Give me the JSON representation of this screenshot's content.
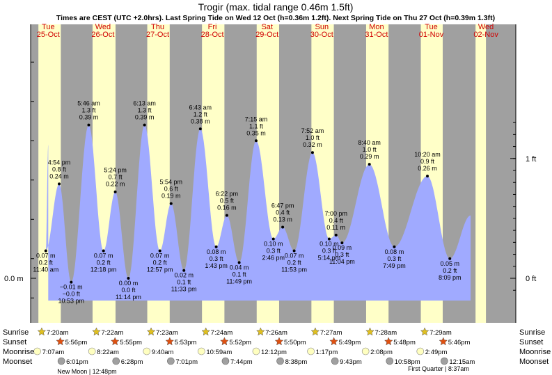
{
  "chart_data": {
    "type": "area",
    "title": "Trogir (max. tidal range 0.46m 1.5ft)",
    "subtitle": "Times are CEST (UTC +2.0hrs). Last Spring Tide on Wed 12 Oct (h=0.36m 1.2ft). Next Spring Tide on Thu 27 Oct (h=0.39m 1.3ft)",
    "days": [
      {
        "dow": "Tue",
        "date": "25-Oct"
      },
      {
        "dow": "Wed",
        "date": "26-Oct"
      },
      {
        "dow": "Thu",
        "date": "27-Oct"
      },
      {
        "dow": "Fri",
        "date": "28-Oct"
      },
      {
        "dow": "Sat",
        "date": "29-Oct"
      },
      {
        "dow": "Sun",
        "date": "30-Oct"
      },
      {
        "dow": "Mon",
        "date": "31-Oct"
      },
      {
        "dow": "Tue",
        "date": "01-Nov"
      },
      {
        "dow": "Wed",
        "date": "02-Nov"
      }
    ],
    "y_axis_left": {
      "label": "0.0 m",
      "value": 0
    },
    "y_axis_right": [
      {
        "label": "0 ft",
        "value_ft": 0
      },
      {
        "label": "1 ft",
        "value_ft": 1
      }
    ],
    "tides": [
      {
        "x": 0.455,
        "h": 0.07,
        "time": "11:40 am",
        "m": "0.07 m",
        "ft": "0.2 ft",
        "kind": "low"
      },
      {
        "x": 0.7,
        "h": 0.24,
        "time": "4:54 pm",
        "m": "0.24 m",
        "ft": "0.8 ft",
        "kind": "high"
      },
      {
        "x": 0.92,
        "h": -0.01,
        "time": "10:53 pm",
        "m": "−0.01 m",
        "ft": "−0.0 ft",
        "kind": "low"
      },
      {
        "x": 1.24,
        "h": 0.39,
        "time": "5:46 am",
        "m": "0.39 m",
        "ft": "1.3 ft",
        "kind": "high"
      },
      {
        "x": 1.51,
        "h": 0.07,
        "time": "12:18 pm",
        "m": "0.07 m",
        "ft": "0.2 ft",
        "kind": "low"
      },
      {
        "x": 1.725,
        "h": 0.22,
        "time": "5:24 pm",
        "m": "0.22 m",
        "ft": "0.7 ft",
        "kind": "high"
      },
      {
        "x": 1.965,
        "h": 0.0,
        "time": "11:14 pm",
        "m": "0.00 m",
        "ft": "0.0 ft",
        "kind": "low"
      },
      {
        "x": 2.26,
        "h": 0.39,
        "time": "6:13 am",
        "m": "0.39 m",
        "ft": "1.3 ft",
        "kind": "high"
      },
      {
        "x": 2.54,
        "h": 0.07,
        "time": "12:57 pm",
        "m": "0.07 m",
        "ft": "0.2 ft",
        "kind": "low"
      },
      {
        "x": 2.745,
        "h": 0.19,
        "time": "5:54 pm",
        "m": "0.19 m",
        "ft": "0.6 ft",
        "kind": "high"
      },
      {
        "x": 2.98,
        "h": 0.02,
        "time": "11:33 pm",
        "m": "0.02 m",
        "ft": "0.1 ft",
        "kind": "low"
      },
      {
        "x": 3.28,
        "h": 0.38,
        "time": "6:43 am",
        "m": "0.38 m",
        "ft": "1.2 ft",
        "kind": "high"
      },
      {
        "x": 3.57,
        "h": 0.08,
        "time": "1:43 pm",
        "m": "0.08 m",
        "ft": "0.3 ft",
        "kind": "low"
      },
      {
        "x": 3.765,
        "h": 0.16,
        "time": "6:22 pm",
        "m": "0.16 m",
        "ft": "0.5 ft",
        "kind": "high"
      },
      {
        "x": 3.99,
        "h": 0.04,
        "time": "11:49 pm",
        "m": "0.04 m",
        "ft": "0.1 ft",
        "kind": "low"
      },
      {
        "x": 4.3,
        "h": 0.35,
        "time": "7:15 am",
        "m": "0.35 m",
        "ft": "1.1 ft",
        "kind": "high"
      },
      {
        "x": 4.615,
        "h": 0.1,
        "time": "2:46 pm",
        "m": "0.10 m",
        "ft": "0.3 ft",
        "kind": "low"
      },
      {
        "x": 4.785,
        "h": 0.13,
        "time": "6:47 pm",
        "m": "0.13 m",
        "ft": "0.4 ft",
        "kind": "high"
      },
      {
        "x": 4.995,
        "h": 0.07,
        "time": "11:53 pm",
        "m": "0.07 m",
        "ft": "0.2 ft",
        "kind": "low"
      },
      {
        "x": 5.33,
        "h": 0.32,
        "time": "7:52 am",
        "m": "0.32 m",
        "ft": "1.0 ft",
        "kind": "high"
      },
      {
        "x": 5.635,
        "h": 0.1,
        "time": "5:14 pm",
        "m": "0.10 m",
        "ft": "0.3 ft",
        "kind": "low"
      },
      {
        "x": 5.76,
        "h": 0.11,
        "time": "7:00 pm",
        "m": "0.11 m",
        "ft": "0.4 ft",
        "kind": "high"
      },
      {
        "x": 5.87,
        "h": 0.09,
        "time": "11:04 pm",
        "m": "0.09 m",
        "ft": "0.3 ft",
        "kind": "low"
      },
      {
        "x": 6.37,
        "h": 0.29,
        "time": "8:40 am",
        "m": "0.29 m",
        "ft": "1.0 ft",
        "kind": "high"
      },
      {
        "x": 6.825,
        "h": 0.08,
        "time": "7:49 pm",
        "m": "0.08 m",
        "ft": "0.3 ft",
        "kind": "low"
      },
      {
        "x": 7.43,
        "h": 0.26,
        "time": "10:20 am",
        "m": "0.26 m",
        "ft": "0.9 ft",
        "kind": "high"
      },
      {
        "x": 7.84,
        "h": 0.05,
        "time": "8:09 pm",
        "m": "0.05 m",
        "ft": "0.2 ft",
        "kind": "low"
      }
    ],
    "daylight": [
      [
        0.32,
        0.73
      ],
      [
        1.31,
        1.73
      ],
      [
        2.31,
        2.72
      ],
      [
        3.31,
        3.72
      ],
      [
        4.31,
        4.72
      ],
      [
        5.31,
        5.72
      ],
      [
        6.31,
        6.72
      ],
      [
        7.31,
        7.71
      ],
      [
        8.31,
        8.5
      ]
    ]
  },
  "legend_rows": {
    "sunrise": "Sunrise",
    "sunset": "Sunset",
    "moonrise": "Moonrise",
    "moonset": "Moonset"
  },
  "sunrise": [
    "7:20am",
    "7:22am",
    "7:23am",
    "7:24am",
    "7:26am",
    "7:27am",
    "7:28am",
    "7:29am"
  ],
  "sunset": [
    "5:56pm",
    "5:55pm",
    "5:53pm",
    "5:52pm",
    "5:50pm",
    "5:49pm",
    "5:48pm",
    "5:46pm"
  ],
  "moonrise": [
    "7:07am",
    "8:22am",
    "9:40am",
    "10:59am",
    "12:12pm",
    "1:17pm",
    "2:08pm",
    "2:49pm"
  ],
  "moonset": [
    "6:01pm",
    "6:28pm",
    "7:01pm",
    "7:44pm",
    "8:38pm",
    "9:43pm",
    "10:58pm",
    "12:15am"
  ],
  "moon_phases": [
    "New Moon | 12:48pm",
    "First Quarter | 8:37am"
  ],
  "colors": {
    "night": "#a0a0a0",
    "day": "#ffffc8",
    "water": "#a0aaff",
    "day_text": "#d00000",
    "sun": "#e0c020",
    "sunset": "#e05010",
    "moon_light": "#ffffc0",
    "moon_dark": "#a0a0a0"
  }
}
